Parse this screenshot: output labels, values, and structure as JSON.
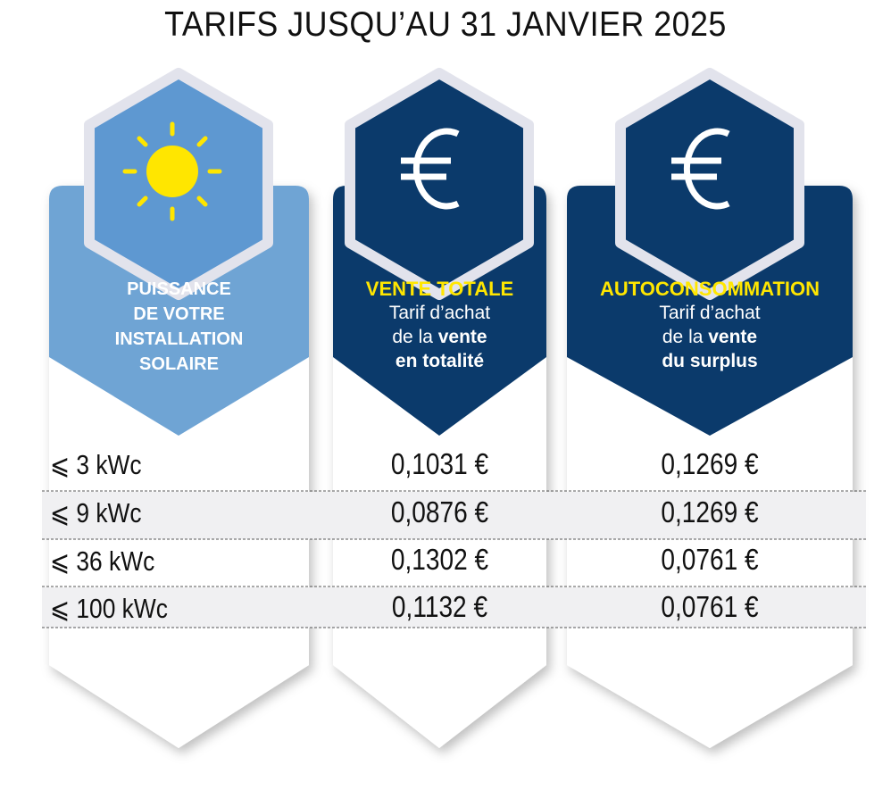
{
  "title": "TARIFS JUSQU’AU 31 JANVIER 2025",
  "colors": {
    "light_blue": "#6fa4d4",
    "navy": "#0b3a6b",
    "yellow": "#ffe600",
    "row_shade": "#f0f0f2"
  },
  "columns": [
    {
      "icon": "sun-icon",
      "lines": [
        "PUISSANCE",
        "DE VOTRE",
        "INSTALLATION",
        "SOLAIRE"
      ]
    },
    {
      "icon": "euro-icon",
      "heading": "VENTE TOTALE",
      "line1": "Tarif d’achat",
      "line2_pre": "de la ",
      "line2_bold": "vente",
      "line3_bold": "en totalité"
    },
    {
      "icon": "euro-icon",
      "heading": "AUTOCONSOMMATION",
      "line1": "Tarif d’achat",
      "line2_pre": "de la ",
      "line2_bold": "vente",
      "line3_bold": "du surplus"
    }
  ],
  "rows": [
    {
      "power": "⩽ 3 kWc",
      "vente_totale": "0,1031 €",
      "autoconsommation": "0,1269 €"
    },
    {
      "power": "⩽ 9 kWc",
      "vente_totale": "0,0876 €",
      "autoconsommation": "0,1269 €"
    },
    {
      "power": "⩽ 36 kWc",
      "vente_totale": "0,1302 €",
      "autoconsommation": "0,0761 €"
    },
    {
      "power": "⩽ 100 kWc",
      "vente_totale": "0,1132 €",
      "autoconsommation": "0,0761 €"
    }
  ]
}
